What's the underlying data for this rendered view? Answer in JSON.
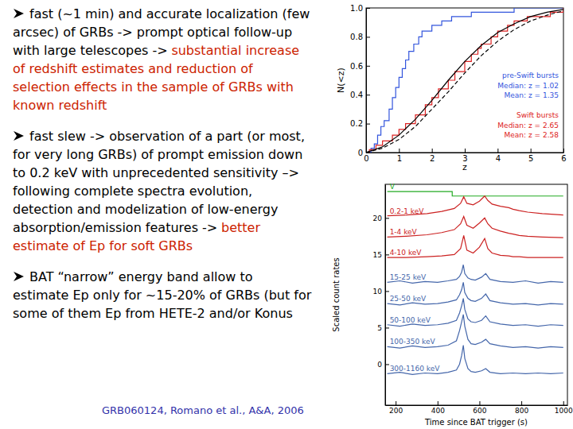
{
  "slide": {
    "bullets": [
      [
        {
          "text": "fast (~1 min) and accurate localization (few arcsec) of GRBs -> prompt optical follow-up with large telescopes ->",
          "color": "#000000"
        },
        {
          "text": "substantial increase of redshift estimates and reduction of selection effects in the sample of GRBs with known redshift",
          "color": "#cc2200"
        }
      ],
      [
        {
          "text": "fast slew -> observation of a part (or most, for very long GRBs) of prompt emission down to 0.2 keV with unprecedented sensitivity –> following complete spectra evolution, detection and modelization of low-energy absorption/emission features ->",
          "color": "#000000"
        },
        {
          "text": "better estimate of Ep for soft GRBs",
          "color": "#cc2200"
        }
      ],
      [
        {
          "text": "BAT “narrow” energy band allow to estimate Ep only for ~15-20% of GRBs (but for some of them Ep from HETE-2 and/or Konus",
          "color": "#000000"
        }
      ]
    ],
    "citation": {
      "text": "GRB060124, Romano et al., A&A, 2006",
      "color": "#3333aa"
    }
  },
  "chart_data": [
    {
      "type": "line",
      "x_label": "z",
      "y_label": "N(<z)",
      "xlim": [
        0,
        6
      ],
      "xticks": [
        0,
        1,
        2,
        3,
        4,
        5,
        6
      ],
      "ylim": [
        0,
        1
      ],
      "yticks": [
        0,
        0.2,
        0.4,
        0.6,
        0.8,
        {
          "value": 1,
          "label": "1.0"
        }
      ],
      "legend": "lower right",
      "series": [
        {
          "name": "pre-Swift bursts",
          "notes": [
            "Median: z = 1.02",
            "Mean: z = 1.35"
          ],
          "color": "#3355dd",
          "type": "step",
          "x": [
            0,
            0.15,
            0.25,
            0.35,
            0.45,
            0.55,
            0.7,
            0.8,
            0.9,
            1.0,
            1.1,
            1.2,
            1.3,
            1.45,
            1.6,
            1.7,
            2.0,
            2.3,
            2.6,
            3.2,
            4.5,
            6
          ],
          "values": [
            0,
            0.03,
            0.06,
            0.12,
            0.18,
            0.22,
            0.3,
            0.38,
            0.45,
            0.52,
            0.58,
            0.64,
            0.7,
            0.75,
            0.8,
            0.84,
            0.88,
            0.91,
            0.94,
            0.97,
            1.0,
            1.0
          ]
        },
        {
          "name": "Swift bursts",
          "notes": [
            "Median: z = 2.65",
            "Mean: z = 2.58"
          ],
          "color": "#dd2222",
          "type": "step",
          "x": [
            0,
            0.1,
            0.3,
            0.5,
            0.8,
            1.0,
            1.2,
            1.5,
            1.8,
            2.0,
            2.2,
            2.5,
            2.7,
            3.0,
            3.2,
            3.4,
            3.5,
            3.8,
            4.0,
            4.3,
            4.5,
            4.9,
            5.6,
            6.0
          ],
          "values": [
            0,
            0.02,
            0.05,
            0.08,
            0.12,
            0.16,
            0.2,
            0.26,
            0.33,
            0.38,
            0.44,
            0.5,
            0.56,
            0.63,
            0.68,
            0.72,
            0.75,
            0.8,
            0.84,
            0.88,
            0.91,
            0.94,
            0.97,
            1.0
          ]
        },
        {
          "color": "#000000",
          "type": "line",
          "line_style": "solid",
          "x": [
            0,
            0.5,
            1,
            1.5,
            2,
            2.5,
            3,
            3.5,
            4,
            4.5,
            5,
            5.5,
            6
          ],
          "values": [
            0,
            0.04,
            0.12,
            0.23,
            0.36,
            0.5,
            0.63,
            0.74,
            0.83,
            0.89,
            0.94,
            0.97,
            0.99
          ]
        },
        {
          "color": "#000000",
          "type": "line",
          "line_style": "dashed",
          "x": [
            0,
            0.5,
            1,
            1.5,
            2,
            2.5,
            3,
            3.5,
            4,
            4.5,
            5,
            5.5,
            6
          ],
          "values": [
            0,
            0.03,
            0.09,
            0.18,
            0.3,
            0.42,
            0.55,
            0.67,
            0.77,
            0.85,
            0.91,
            0.95,
            0.98
          ]
        }
      ]
    },
    {
      "type": "line",
      "x_label": "Time since BAT trigger (s)",
      "y_label": "Scaled count rates",
      "xlim": [
        150,
        1020
      ],
      "xticks": [
        200,
        400,
        600,
        800,
        1000
      ],
      "ylim": [
        -5.6,
        24.6
      ],
      "yticks": [
        0,
        5,
        10,
        15,
        20
      ],
      "series": [
        {
          "name": "V",
          "color": "#22aa22",
          "x": [
            160,
            470,
            470,
            1000
          ],
          "values": [
            23.6,
            23.6,
            23.0,
            23.0
          ]
        },
        {
          "name": "0.2-1 keV",
          "color": "#cc2222",
          "x": [
            160,
            250,
            350,
            420,
            480,
            510,
            525,
            540,
            570,
            600,
            625,
            640,
            660,
            700,
            740,
            760,
            790,
            830,
            900,
            1000
          ],
          "values": [
            20.3,
            20.4,
            20.6,
            20.9,
            21.3,
            22.0,
            22.9,
            22.0,
            21.8,
            22.3,
            23.0,
            22.4,
            21.9,
            21.6,
            21.4,
            21.2,
            21.0,
            20.8,
            20.6,
            20.4
          ]
        },
        {
          "name": "1-4 keV",
          "color": "#cc2222",
          "x": [
            160,
            250,
            350,
            420,
            480,
            510,
            525,
            540,
            570,
            600,
            625,
            640,
            660,
            700,
            740,
            760,
            790,
            830,
            900,
            1000
          ],
          "values": [
            17.4,
            17.5,
            17.7,
            18.0,
            18.4,
            19.2,
            20.2,
            19.0,
            18.6,
            19.3,
            20.0,
            19.2,
            18.6,
            18.2,
            17.9,
            17.8,
            17.6,
            17.5,
            17.4,
            17.3
          ]
        },
        {
          "name": "4-10 keV",
          "color": "#cc2222",
          "x": [
            160,
            250,
            350,
            420,
            480,
            510,
            525,
            540,
            570,
            600,
            625,
            640,
            660,
            700,
            740,
            760,
            790,
            830,
            900,
            1000
          ],
          "values": [
            14.6,
            14.6,
            14.7,
            14.8,
            15.0,
            15.8,
            17.6,
            15.6,
            15.2,
            16.0,
            17.2,
            15.8,
            15.2,
            14.9,
            14.8,
            14.7,
            14.7,
            14.6,
            14.6,
            14.6
          ]
        },
        {
          "name": "15-25 keV",
          "color": "#4466aa",
          "x": [
            160,
            220,
            280,
            340,
            400,
            450,
            490,
            505,
            515,
            523,
            530,
            545,
            560,
            580,
            610,
            630,
            650,
            700,
            760,
            820,
            880,
            940,
            1000
          ],
          "values": [
            11.2,
            11.4,
            11.1,
            11.3,
            11.2,
            11.4,
            11.6,
            12.0,
            12.6,
            13.6,
            12.4,
            11.8,
            11.6,
            11.5,
            11.9,
            12.4,
            11.6,
            11.3,
            11.2,
            11.4,
            11.1,
            11.3,
            11.2
          ]
        },
        {
          "name": "25-50 keV",
          "color": "#4466aa",
          "x": [
            160,
            220,
            280,
            340,
            400,
            450,
            490,
            505,
            515,
            523,
            530,
            545,
            560,
            580,
            610,
            630,
            650,
            700,
            760,
            820,
            880,
            940,
            1000
          ],
          "values": [
            8.3,
            8.1,
            8.4,
            8.2,
            8.3,
            8.5,
            8.8,
            9.5,
            10.2,
            11.2,
            9.8,
            9.0,
            8.7,
            8.6,
            9.0,
            9.6,
            8.7,
            8.4,
            8.2,
            8.3,
            8.1,
            8.3,
            8.2
          ]
        },
        {
          "name": "50-100 keV",
          "color": "#4466aa",
          "x": [
            160,
            220,
            280,
            340,
            400,
            450,
            490,
            505,
            515,
            523,
            530,
            545,
            560,
            580,
            610,
            630,
            650,
            700,
            760,
            820,
            880,
            940,
            1000
          ],
          "values": [
            5.4,
            5.2,
            5.5,
            5.3,
            5.4,
            5.6,
            6.0,
            7.0,
            8.0,
            9.0,
            7.5,
            6.2,
            5.8,
            5.7,
            6.0,
            6.6,
            5.8,
            5.5,
            5.3,
            5.4,
            5.2,
            5.4,
            5.3
          ]
        },
        {
          "name": "100-350 keV",
          "color": "#4466aa",
          "x": [
            160,
            220,
            280,
            340,
            400,
            450,
            490,
            505,
            515,
            523,
            530,
            545,
            560,
            580,
            610,
            630,
            650,
            700,
            760,
            820,
            880,
            940,
            1000
          ],
          "values": [
            2.4,
            2.2,
            2.5,
            2.3,
            2.4,
            2.6,
            3.2,
            4.6,
            5.8,
            6.8,
            5.2,
            3.4,
            2.8,
            2.7,
            3.0,
            3.4,
            2.8,
            2.5,
            2.3,
            2.4,
            2.2,
            2.4,
            2.3
          ]
        },
        {
          "name": "300-1160 keV",
          "color": "#4466aa",
          "x": [
            160,
            220,
            280,
            340,
            400,
            450,
            490,
            505,
            515,
            523,
            530,
            545,
            560,
            580,
            610,
            630,
            650,
            700,
            760,
            820,
            880,
            940,
            1000
          ],
          "values": [
            -1.3,
            -1.1,
            -1.4,
            -1.2,
            -1.3,
            -1.1,
            -0.8,
            0.0,
            1.2,
            2.6,
            0.8,
            -0.6,
            -1.0,
            -1.1,
            -0.9,
            -0.6,
            -1.1,
            -1.3,
            -1.2,
            -1.3,
            -1.2,
            -1.3,
            -1.2
          ]
        }
      ]
    }
  ]
}
